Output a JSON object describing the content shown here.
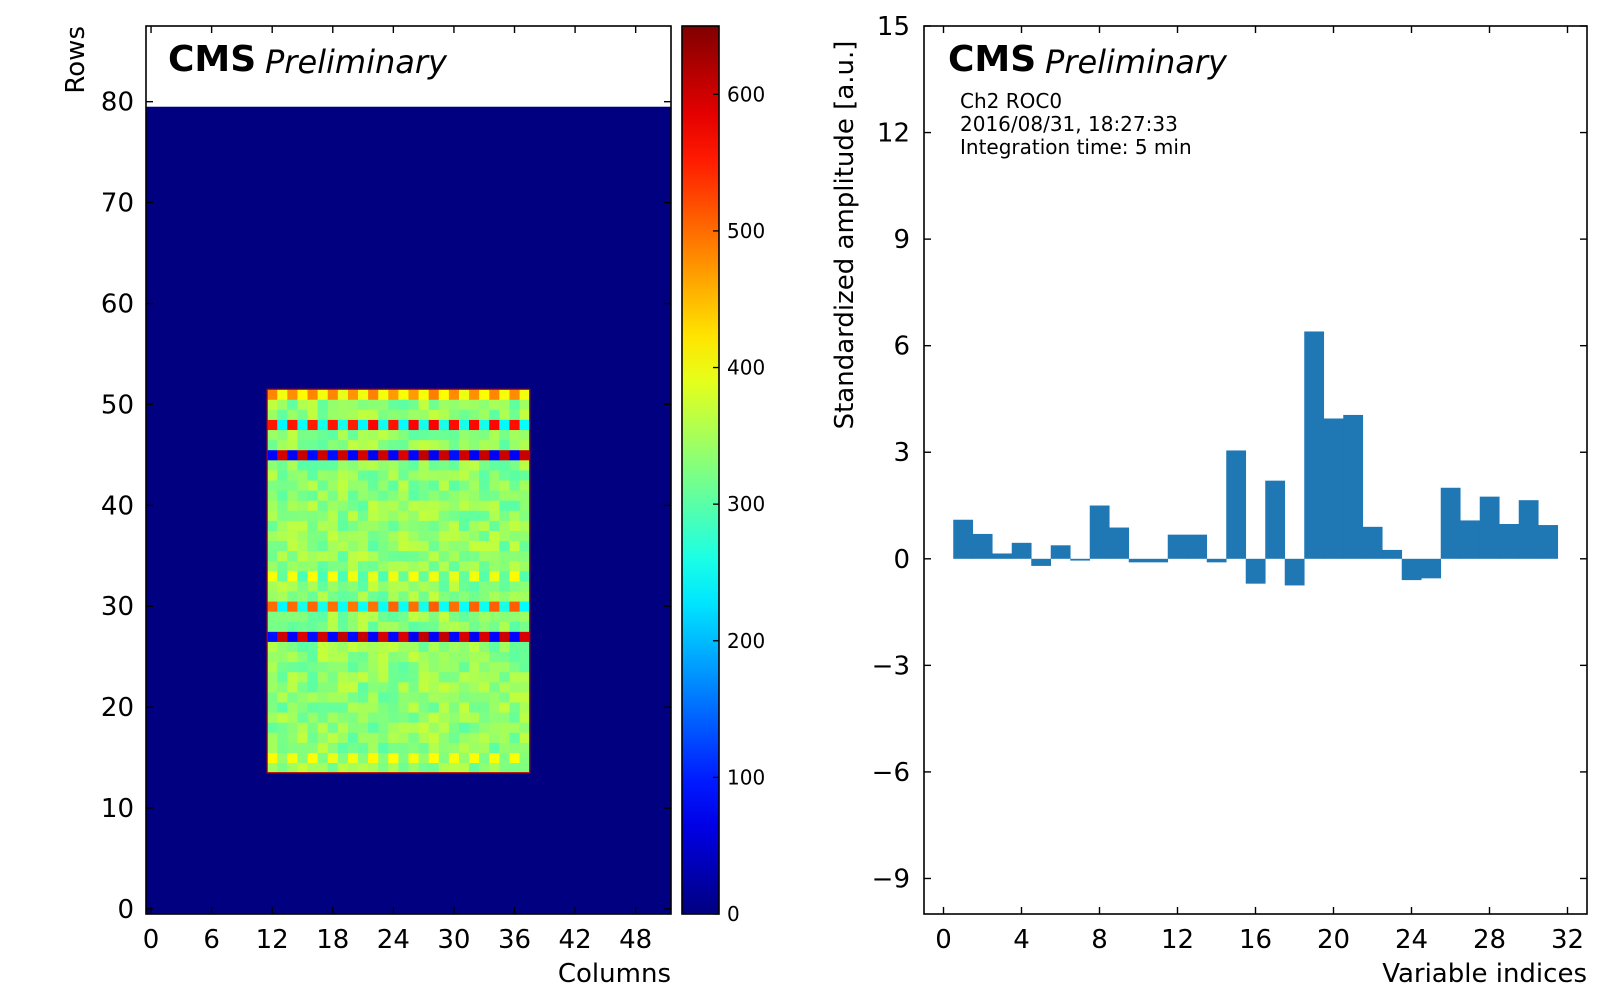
{
  "branding": {
    "cms": "CMS",
    "preliminary": "Preliminary"
  },
  "colors": {
    "heatmap_background": "#00007f",
    "bar": "#1f77b4",
    "axis": "#000000"
  },
  "chart_data": [
    {
      "type": "heatmap",
      "xlabel": "Columns",
      "ylabel": "Rows",
      "xlim": [
        -0.5,
        51.5
      ],
      "ylim": [
        -0.5,
        87.5
      ],
      "xticks": [
        0,
        6,
        12,
        18,
        24,
        30,
        36,
        42,
        48
      ],
      "yticks": [
        0,
        10,
        20,
        30,
        40,
        50,
        60,
        70,
        80
      ],
      "matrix_shape": [
        80,
        52
      ],
      "filled_region": {
        "columns": [
          12,
          37
        ],
        "rows": [
          14,
          51
        ]
      },
      "bulk_value_range": [
        300,
        370
      ],
      "modulated_rows": [
        {
          "row": 15,
          "pattern": "alternating",
          "values": [
            400,
            330
          ]
        },
        {
          "row": 27,
          "pattern": "alternating",
          "values": [
            80,
            600
          ]
        },
        {
          "row": 30,
          "pattern": "alternating",
          "values": [
            500,
            250
          ]
        },
        {
          "row": 33,
          "pattern": "alternating",
          "values": [
            400,
            300
          ]
        },
        {
          "row": 45,
          "pattern": "alternating",
          "values": [
            80,
            600
          ]
        },
        {
          "row": 48,
          "pattern": "alternating",
          "values": [
            560,
            250
          ]
        },
        {
          "row": 51,
          "pattern": "alternating",
          "values": [
            480,
            400
          ]
        }
      ],
      "colorbar": {
        "min": 0,
        "max": 650,
        "ticks": [
          0,
          100,
          200,
          300,
          400,
          500,
          600
        ],
        "colormap": "jet"
      }
    },
    {
      "type": "bar",
      "xlabel": "Variable indices",
      "ylabel": "Standardized amplitude [a.u.]",
      "annotation": [
        "Ch2 ROC0",
        "2016/08/31, 18:27:33",
        "Integration time: 5 min"
      ],
      "xlim": [
        -1,
        33
      ],
      "ylim": [
        -10,
        15
      ],
      "xticks": [
        0,
        4,
        8,
        12,
        16,
        20,
        24,
        28,
        32
      ],
      "yticks": [
        -9,
        -6,
        -3,
        0,
        3,
        6,
        9,
        12,
        15
      ],
      "ytick_labels": [
        "−9",
        "−6",
        "−3",
        "0",
        "3",
        "6",
        "9",
        "12",
        "15"
      ],
      "categories": [
        1,
        2,
        3,
        4,
        5,
        6,
        7,
        8,
        9,
        10,
        11,
        12,
        13,
        14,
        15,
        16,
        17,
        18,
        19,
        20,
        21,
        22,
        23,
        24,
        25,
        26,
        27,
        28,
        29,
        30,
        31
      ],
      "values": [
        1.1,
        0.7,
        0.15,
        0.45,
        -0.2,
        0.38,
        -0.05,
        1.5,
        0.88,
        -0.1,
        -0.1,
        0.68,
        0.68,
        -0.1,
        3.05,
        -0.7,
        2.2,
        -0.75,
        6.4,
        3.95,
        4.05,
        0.9,
        0.25,
        -0.6,
        -0.55,
        2.0,
        1.08,
        1.75,
        0.98,
        1.65,
        0.95
      ]
    }
  ]
}
